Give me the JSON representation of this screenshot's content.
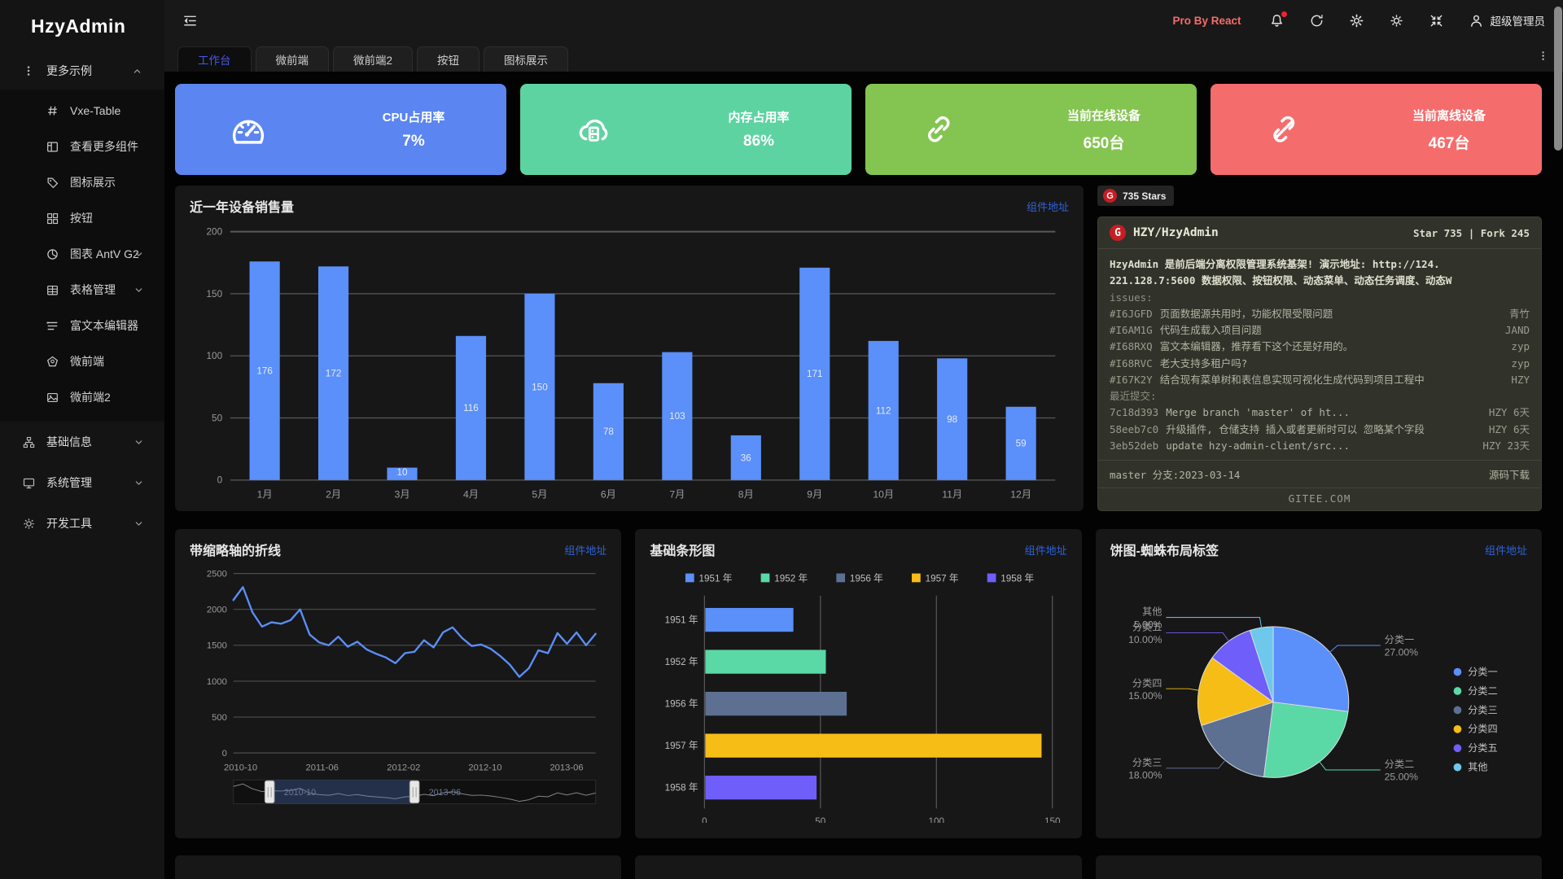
{
  "app": {
    "logo": "HzyAdmin",
    "pro_label": "Pro By React",
    "user": "超级管理员"
  },
  "sidebar": {
    "group_label": "更多示例",
    "items": [
      {
        "icon": "hash-icon",
        "label": "Vxe-Table"
      },
      {
        "icon": "layout-icon",
        "label": "查看更多组件"
      },
      {
        "icon": "tag-icon",
        "label": "图标展示"
      },
      {
        "icon": "appstore-icon",
        "label": "按钮"
      },
      {
        "icon": "pie-icon",
        "label": "图表 AntV G2",
        "chevron": "down"
      },
      {
        "icon": "table-icon",
        "label": "表格管理",
        "chevron": "down"
      },
      {
        "icon": "richtext-icon",
        "label": "富文本编辑器"
      },
      {
        "icon": "pentagon-icon",
        "label": "微前端"
      },
      {
        "icon": "image-icon",
        "label": "微前端2"
      }
    ],
    "groups": [
      {
        "icon": "sitemap-icon",
        "label": "基础信息",
        "chevron": "down"
      },
      {
        "icon": "monitor-icon",
        "label": "系统管理",
        "chevron": "down"
      },
      {
        "icon": "tool-icon",
        "label": "开发工具",
        "chevron": "down"
      }
    ]
  },
  "tabs": [
    {
      "label": "工作台",
      "active": true
    },
    {
      "label": "微前端",
      "active": false
    },
    {
      "label": "微前端2",
      "active": false
    },
    {
      "label": "按钮",
      "active": false
    },
    {
      "label": "图标展示",
      "active": false
    }
  ],
  "stat_cards": [
    {
      "icon": "gauge-icon",
      "label": "CPU占用率",
      "value": "7%",
      "color": "#5b85f0"
    },
    {
      "icon": "cloud-server-icon",
      "label": "内存占用率",
      "value": "86%",
      "color": "#5ed3a2"
    },
    {
      "icon": "link-icon",
      "label": "当前在线设备",
      "value": "650台",
      "color": "#84c450"
    },
    {
      "icon": "unlink-icon",
      "label": "当前离线设备",
      "value": "467台",
      "color": "#f56c6c"
    }
  ],
  "chart_data": [
    {
      "type": "bar",
      "title": "近一年设备销售量",
      "link": "组件地址",
      "categories": [
        "1月",
        "2月",
        "3月",
        "4月",
        "5月",
        "6月",
        "7月",
        "8月",
        "9月",
        "10月",
        "11月",
        "12月"
      ],
      "values": [
        176,
        172,
        10,
        116,
        150,
        78,
        103,
        36,
        171,
        112,
        98,
        59
      ],
      "ylim": [
        0,
        200
      ],
      "yticks": [
        0,
        50,
        100,
        150,
        200
      ],
      "color": "#5b8ff9",
      "grid": true
    },
    {
      "type": "line",
      "title": "带缩略轴的折线",
      "link": "组件地址",
      "x_tick_labels": [
        "2010-10",
        "2011-06",
        "2012-02",
        "2012-10",
        "2013-06"
      ],
      "values": [
        2130,
        2310,
        1960,
        1760,
        1820,
        1800,
        1850,
        2000,
        1650,
        1540,
        1500,
        1620,
        1480,
        1550,
        1440,
        1380,
        1330,
        1250,
        1390,
        1410,
        1570,
        1470,
        1680,
        1750,
        1600,
        1490,
        1510,
        1450,
        1350,
        1230,
        1060,
        1180,
        1430,
        1390,
        1670,
        1520,
        1680,
        1500,
        1660
      ],
      "ylim": [
        0,
        2500
      ],
      "yticks": [
        0,
        500,
        1000,
        1500,
        2000,
        2500
      ],
      "color": "#5b8ff9",
      "grid": true,
      "brush": {
        "handle_positions": [
          0.1,
          0.5
        ],
        "start_label": "2010-10",
        "end_label": "2013-06"
      }
    },
    {
      "type": "bar-horizontal",
      "title": "基础条形图",
      "link": "组件地址",
      "legend": [
        "1951 年",
        "1952 年",
        "1956 年",
        "1957 年",
        "1958 年"
      ],
      "categories": [
        "1951 年",
        "1952 年",
        "1956 年",
        "1957 年",
        "1958 年"
      ],
      "values": [
        38,
        52,
        61,
        145,
        48
      ],
      "xlim": [
        0,
        150
      ],
      "xticks": [
        0,
        50,
        100,
        150
      ],
      "colors": [
        "#5b8ff9",
        "#5ad8a6",
        "#5d7092",
        "#f6bd16",
        "#6f5ef9"
      ],
      "legend_position": "top"
    },
    {
      "type": "pie",
      "title": "饼图-蜘蛛布局标签",
      "link": "组件地址",
      "slices": [
        {
          "name": "分类一",
          "pct": 27,
          "label": "27.00%"
        },
        {
          "name": "分类二",
          "pct": 25,
          "label": "25.00%"
        },
        {
          "name": "分类三",
          "pct": 18,
          "label": "18.00%"
        },
        {
          "name": "分类四",
          "pct": 15,
          "label": "15.00%"
        },
        {
          "name": "分类五",
          "pct": 10,
          "label": "10.00%"
        },
        {
          "name": "其他",
          "pct": 5,
          "label": "5.00%"
        }
      ],
      "colors": [
        "#5b8ff9",
        "#5ad8a6",
        "#5d7092",
        "#f6bd16",
        "#6f5ef9",
        "#6dc8ec"
      ],
      "legend_position": "right"
    }
  ],
  "gitee": {
    "badge_label": "735 Stars",
    "repo": "HZY/HzyAdmin",
    "stats": "Star 735 | Fork 245",
    "desc1": "HzyAdmin 是前后端分离权限管理系统基架! 演示地址: http://124.",
    "desc2": "221.128.7:5600 数据权限、按钮权限、动态菜单、动态任务调度、动态W",
    "issues_label": "issues:",
    "issues": [
      {
        "id": "#I6JGFD",
        "text": "页面数据源共用时，功能权限受限问题",
        "author": "青竹"
      },
      {
        "id": "#I6AM1G",
        "text": "代码生成载入项目问题",
        "author": "JAND"
      },
      {
        "id": "#I68RXQ",
        "text": "富文本编辑器，推荐看下这个还是好用的。",
        "author": "zyp"
      },
      {
        "id": "#I68RVC",
        "text": "老大支持多租户吗?",
        "author": "zyp"
      },
      {
        "id": "#I67K2Y",
        "text": "结合现有菜单树和表信息实现可视化生成代码到项目工程中",
        "author": "HZY"
      }
    ],
    "commits_label": "最近提交:",
    "commits": [
      {
        "id": "7c18d393",
        "text": "Merge branch 'master' of ht...",
        "author": "HZY 6天"
      },
      {
        "id": "58eeb7c0",
        "text": "升级插件, 仓储支持 插入或者更新时可以 忽略某个字段",
        "author": "HZY 6天"
      },
      {
        "id": "3eb52deb",
        "text": "update hzy-admin-client/src...",
        "author": "HZY 23天"
      }
    ],
    "branch": "master 分支:2023-03-14",
    "download_label": "源码下载",
    "site": "GITEE.COM"
  }
}
